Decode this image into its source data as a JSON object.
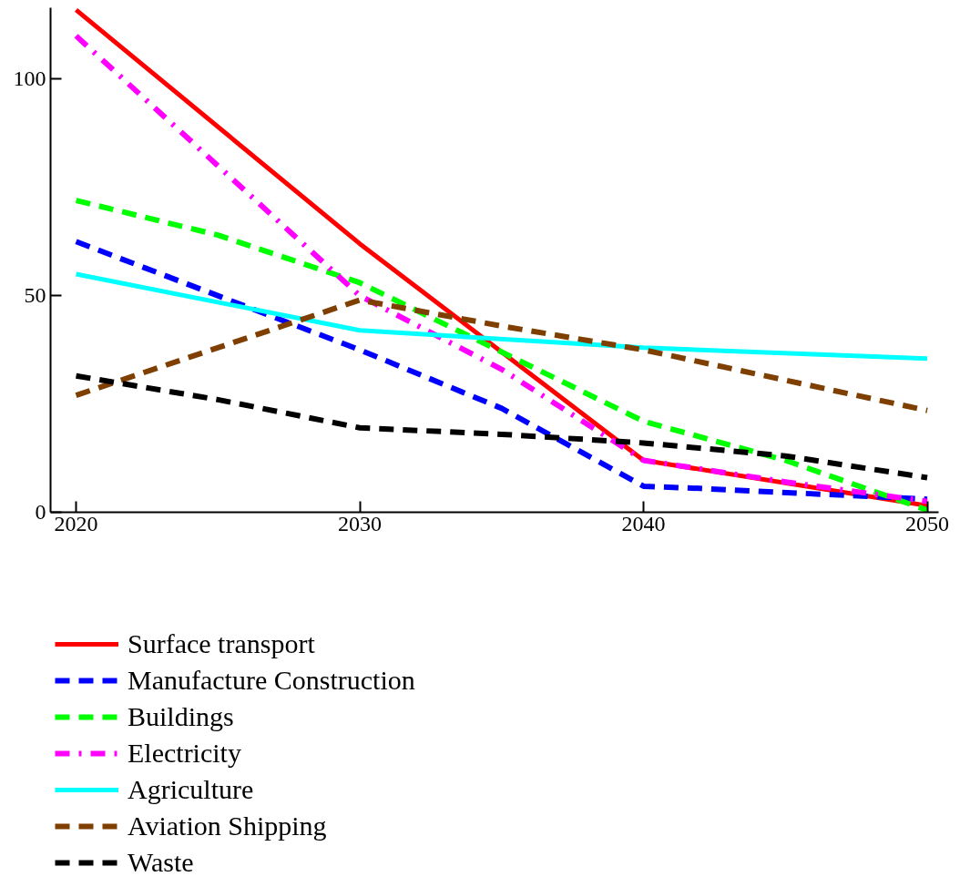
{
  "chart_data": {
    "type": "line",
    "x": [
      2020,
      2030,
      2040,
      2050
    ],
    "xlim": [
      2019.1,
      2050.4
    ],
    "ylim": [
      0,
      116.5
    ],
    "xticks": [
      2020,
      2030,
      2040,
      2050
    ],
    "yticks": [
      0,
      50,
      100
    ],
    "grid": false,
    "legend": "bottom",
    "marker": "none",
    "series": [
      {
        "name": "Surface transport",
        "color": "#ff0000",
        "line_style": "solid",
        "values": [
          116,
          62,
          12,
          1.5
        ]
      },
      {
        "name": "Manufacture Construction",
        "color": "#0000ff",
        "line_style": "dashed",
        "x": [
          2020,
          2030,
          2035,
          2040,
          2042,
          2050
        ],
        "values": [
          62.5,
          37.5,
          24,
          6,
          5.5,
          3
        ]
      },
      {
        "name": "Buildings",
        "color": "#00ff00",
        "line_style": "dashed",
        "x": [
          2020,
          2025,
          2030,
          2035,
          2040,
          2045,
          2050
        ],
        "values": [
          72,
          64,
          53,
          37,
          21,
          12,
          0.5
        ]
      },
      {
        "name": "Electricity",
        "color": "#ff00ff",
        "line_style": "dashdot",
        "x": [
          2020,
          2030,
          2035,
          2040,
          2045,
          2050
        ],
        "values": [
          110,
          50,
          33,
          12,
          7,
          2.5
        ]
      },
      {
        "name": "Agriculture",
        "color": "#00ffff",
        "line_style": "solid",
        "values": [
          55,
          42,
          38,
          35.5
        ]
      },
      {
        "name": "Aviation Shipping",
        "color": "#7f3f00",
        "line_style": "dashed",
        "x": [
          2020,
          2030,
          2035,
          2040,
          2050
        ],
        "values": [
          27,
          49,
          43,
          37.5,
          23.5
        ]
      },
      {
        "name": "Waste",
        "color": "#000000",
        "line_style": "dashed",
        "x": [
          2020,
          2025,
          2030,
          2035,
          2040,
          2045,
          2050
        ],
        "values": [
          31.5,
          26,
          19.5,
          18,
          16,
          13,
          8
        ]
      }
    ]
  }
}
